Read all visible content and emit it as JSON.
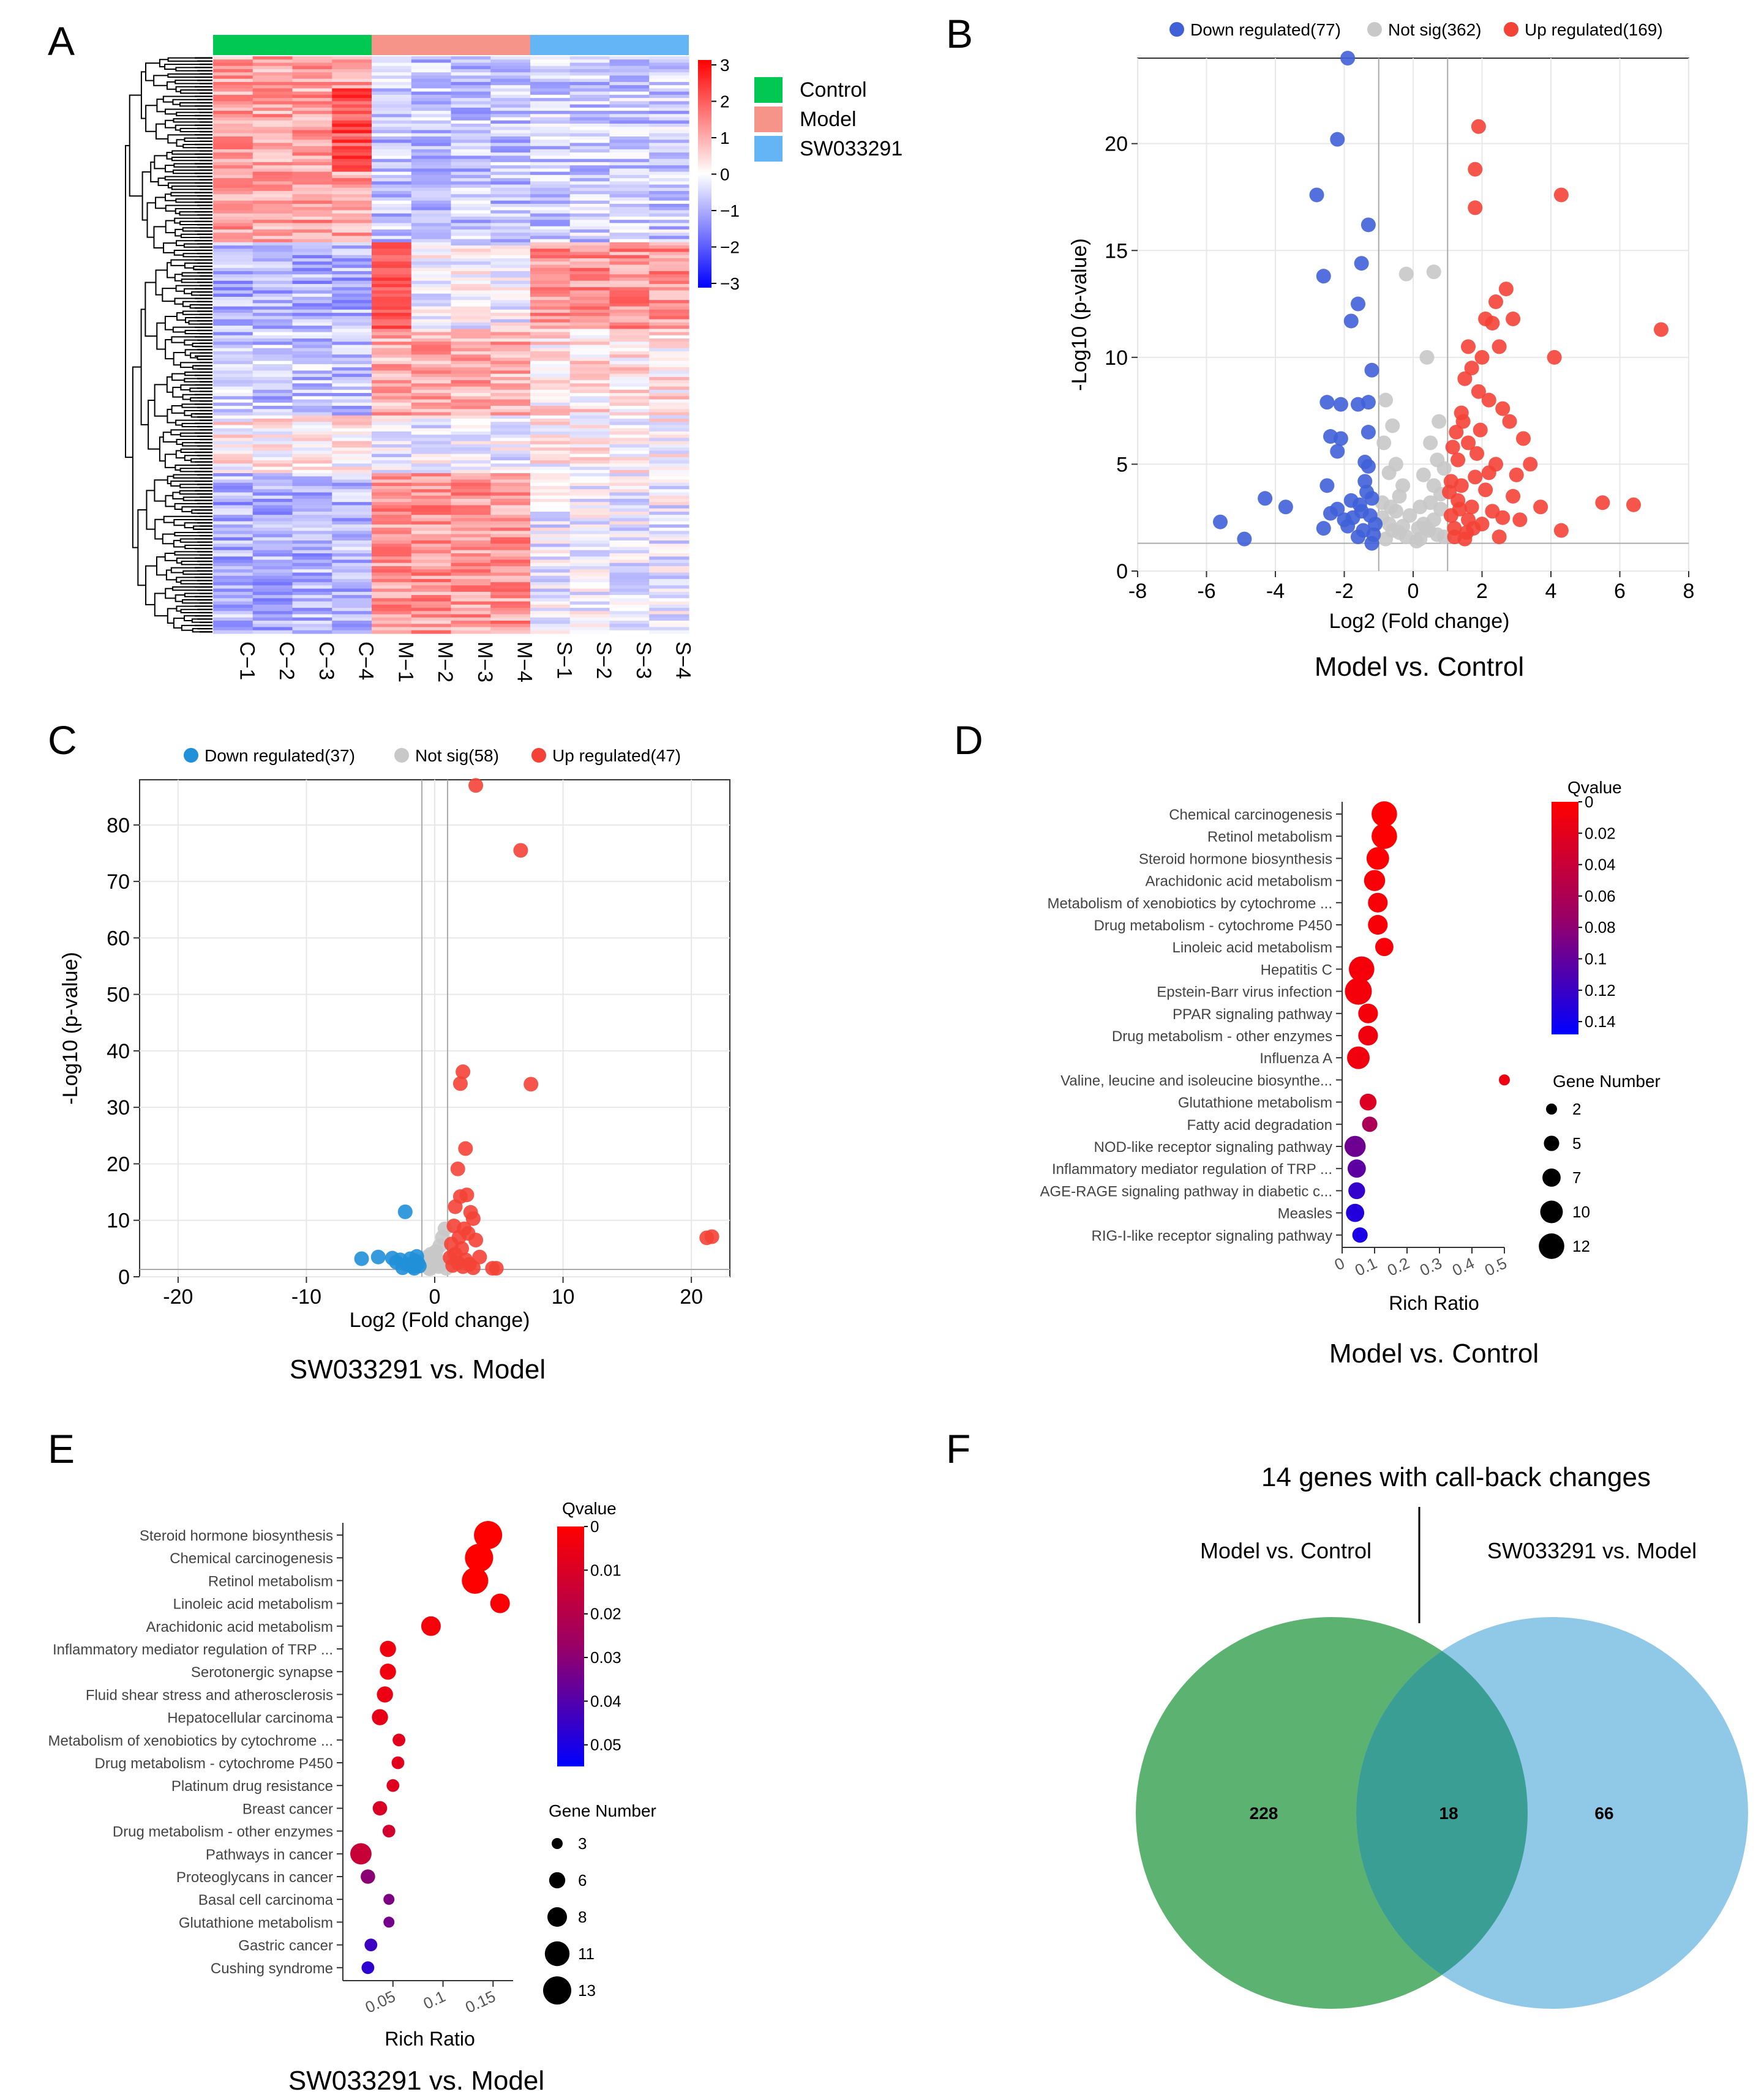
{
  "figure": {
    "panels": [
      "A",
      "B",
      "C",
      "D",
      "E",
      "F"
    ]
  },
  "colors": {
    "control": "#00c853",
    "model": "#f79489",
    "sw": "#64b5f6",
    "down_b": "#4060d8",
    "notsig": "#c8c8c8",
    "up": "#f44336",
    "down_c": "#2090d8",
    "venn_left": "#5cb270",
    "venn_right": "#90c8e8",
    "venn_overlap": "#3a9e94"
  },
  "chart_data": [
    {
      "panel": "A",
      "type": "heatmap",
      "columns": [
        "C−1",
        "C−2",
        "C−3",
        "C−4",
        "M−1",
        "M−2",
        "M−3",
        "M−4",
        "S−1",
        "S−2",
        "S−3",
        "S−4"
      ],
      "groups": [
        {
          "name": "Control",
          "n": 4
        },
        {
          "name": "Model",
          "n": 4
        },
        {
          "name": "SW033291",
          "n": 4
        }
      ],
      "color_scale": {
        "min": -3,
        "max": 3,
        "ticks": [
          "3",
          "2",
          "1",
          "0",
          "−1",
          "−2",
          "−3"
        ]
      },
      "legend": [
        "Control",
        "Model",
        "SW033291"
      ]
    },
    {
      "panel": "B",
      "type": "scatter",
      "subtitle": "Model vs. Control",
      "xlabel": "Log2 (Fold change)",
      "ylabel": "-Log10 (p-value)",
      "xlim": [
        -8,
        8
      ],
      "ylim": [
        0,
        24
      ],
      "xticks": [
        "-8",
        "-6",
        "-4",
        "-2",
        "0",
        "2",
        "4",
        "6",
        "8"
      ],
      "yticks": [
        "0",
        "5",
        "10",
        "15",
        "20"
      ],
      "thresholds": {
        "fc": 1,
        "p": 1.3
      },
      "legend": [
        "Down regulated(77)",
        "Not sig(362)",
        "Up regulated(169)"
      ],
      "down": [
        [
          -1.9,
          24
        ],
        [
          -2.2,
          20.2
        ],
        [
          -2.8,
          17.6
        ],
        [
          -1.3,
          16.2
        ],
        [
          -2.6,
          13.8
        ],
        [
          -1.5,
          14.4
        ],
        [
          -1.6,
          12.5
        ],
        [
          -1.8,
          11.7
        ],
        [
          -1.2,
          9.4
        ],
        [
          -2.5,
          7.9
        ],
        [
          -2.1,
          7.8
        ],
        [
          -1.6,
          7.8
        ],
        [
          -1.3,
          7.9
        ],
        [
          -2.4,
          6.3
        ],
        [
          -2.1,
          6.2
        ],
        [
          -2.2,
          5.6
        ],
        [
          -1.4,
          5.1
        ],
        [
          -1.3,
          4.9
        ],
        [
          -2.5,
          4.0
        ],
        [
          -4.3,
          3.4
        ],
        [
          -3.7,
          3.0
        ],
        [
          -2.4,
          2.7
        ],
        [
          -2.0,
          2.4
        ],
        [
          -5.6,
          2.3
        ],
        [
          -4.9,
          1.5
        ],
        [
          -2.6,
          2.0
        ],
        [
          -1.9,
          2.1
        ],
        [
          -1.5,
          2.8
        ],
        [
          -1.2,
          3.4
        ],
        [
          -1.8,
          3.3
        ],
        [
          -1.4,
          4.2
        ],
        [
          -1.1,
          2.2
        ],
        [
          -1.6,
          1.6
        ],
        [
          -1.2,
          1.3
        ],
        [
          -1.35,
          3.7
        ],
        [
          -1.55,
          3.1
        ],
        [
          -1.25,
          2.6
        ],
        [
          -1.75,
          2.5
        ],
        [
          -1.45,
          1.9
        ],
        [
          -1.15,
          1.7
        ],
        [
          -2.2,
          2.9
        ],
        [
          -1.3,
          6.5
        ]
      ],
      "notsig": [
        [
          -0.2,
          13.9
        ],
        [
          0.6,
          14.0
        ],
        [
          0.4,
          10.0
        ],
        [
          -0.8,
          8.0
        ],
        [
          -0.6,
          6.8
        ],
        [
          0.5,
          6.0
        ],
        [
          0.7,
          5.2
        ],
        [
          -0.5,
          5.0
        ],
        [
          0.3,
          4.5
        ],
        [
          -0.3,
          4.0
        ],
        [
          0.8,
          3.6
        ],
        [
          -0.9,
          3.2
        ],
        [
          0.2,
          3.0
        ],
        [
          -0.1,
          2.6
        ],
        [
          0.6,
          2.4
        ],
        [
          -0.7,
          2.2
        ],
        [
          0.4,
          2.0
        ],
        [
          -0.4,
          1.8
        ],
        [
          0.9,
          1.6
        ],
        [
          -0.8,
          1.5
        ],
        [
          0.1,
          1.4
        ],
        [
          -0.6,
          1.9
        ],
        [
          0.7,
          1.7
        ],
        [
          0.5,
          3.2
        ],
        [
          -0.4,
          3.5
        ],
        [
          0.3,
          2.2
        ],
        [
          -0.2,
          1.6
        ],
        [
          0.8,
          2.9
        ],
        [
          -0.9,
          2.5
        ],
        [
          0.6,
          4.0
        ],
        [
          -0.7,
          4.6
        ],
        [
          0.2,
          1.5
        ],
        [
          -0.5,
          2.8
        ],
        [
          0.75,
          7.0
        ],
        [
          -0.85,
          6.0
        ],
        [
          0.9,
          4.8
        ],
        [
          -0.3,
          2.1
        ],
        [
          0.45,
          1.9
        ],
        [
          -0.65,
          3.0
        ],
        [
          0.15,
          2.0
        ]
      ],
      "up": [
        [
          1.9,
          20.8
        ],
        [
          1.8,
          18.8
        ],
        [
          1.8,
          17.0
        ],
        [
          4.3,
          17.6
        ],
        [
          7.2,
          11.3
        ],
        [
          2.7,
          13.2
        ],
        [
          2.4,
          12.6
        ],
        [
          2.1,
          11.8
        ],
        [
          2.3,
          11.6
        ],
        [
          2.9,
          11.8
        ],
        [
          1.6,
          10.5
        ],
        [
          2.0,
          10.0
        ],
        [
          2.5,
          10.5
        ],
        [
          1.7,
          9.5
        ],
        [
          4.1,
          10.0
        ],
        [
          1.5,
          9.0
        ],
        [
          1.9,
          8.4
        ],
        [
          2.2,
          8.0
        ],
        [
          2.6,
          7.6
        ],
        [
          1.4,
          7.4
        ],
        [
          2.8,
          7.0
        ],
        [
          3.2,
          6.2
        ],
        [
          1.6,
          6.0
        ],
        [
          1.3,
          5.2
        ],
        [
          2.4,
          5.0
        ],
        [
          3.0,
          4.5
        ],
        [
          1.8,
          4.4
        ],
        [
          2.1,
          3.8
        ],
        [
          3.7,
          3.0
        ],
        [
          4.3,
          1.9
        ],
        [
          5.5,
          3.2
        ],
        [
          6.4,
          3.1
        ],
        [
          2.6,
          2.5
        ],
        [
          1.2,
          2.0
        ],
        [
          1.5,
          1.5
        ],
        [
          1.3,
          3.3
        ],
        [
          1.1,
          2.6
        ],
        [
          2.0,
          2.2
        ],
        [
          1.4,
          4.0
        ],
        [
          1.7,
          3.0
        ],
        [
          2.3,
          2.8
        ],
        [
          1.2,
          1.6
        ],
        [
          1.6,
          2.4
        ],
        [
          3.4,
          5.0
        ],
        [
          2.9,
          3.5
        ],
        [
          1.25,
          6.5
        ],
        [
          1.45,
          7.0
        ],
        [
          1.85,
          5.5
        ],
        [
          1.1,
          4.2
        ],
        [
          1.55,
          1.8
        ],
        [
          2.5,
          1.6
        ],
        [
          1.35,
          2.9
        ],
        [
          1.75,
          2.0
        ],
        [
          1.15,
          5.8
        ],
        [
          2.2,
          4.6
        ],
        [
          3.1,
          2.4
        ],
        [
          1.95,
          6.6
        ],
        [
          1.05,
          3.7
        ]
      ]
    },
    {
      "panel": "C",
      "type": "scatter",
      "subtitle": "SW033291 vs. Model",
      "xlabel": "Log2 (Fold change)",
      "ylabel": "-Log10 (p-value)",
      "xlim": [
        -23,
        23
      ],
      "ylim": [
        0,
        88
      ],
      "xticks": [
        "-20",
        "-10",
        "0",
        "10",
        "20"
      ],
      "yticks": [
        "0",
        "10",
        "20",
        "30",
        "40",
        "50",
        "60",
        "70",
        "80"
      ],
      "thresholds": {
        "fc": 1,
        "p": 1.3
      },
      "legend": [
        "Down regulated(37)",
        "Not sig(58)",
        "Up regulated(47)"
      ],
      "down": [
        [
          -2.3,
          11.5
        ],
        [
          -5.7,
          3.2
        ],
        [
          -4.4,
          3.5
        ],
        [
          -3.3,
          3.3
        ],
        [
          -2.7,
          3.0
        ],
        [
          -1.9,
          3.2
        ],
        [
          -1.5,
          2.8
        ],
        [
          -2.2,
          2.2
        ],
        [
          -1.7,
          1.8
        ],
        [
          -1.3,
          2.4
        ],
        [
          -1.6,
          1.5
        ],
        [
          -2.5,
          1.6
        ],
        [
          -1.4,
          3.6
        ],
        [
          -1.2,
          1.9
        ],
        [
          -3.0,
          2.6
        ]
      ],
      "notsig": [
        [
          0.8,
          8.5
        ],
        [
          0.6,
          7.0
        ],
        [
          0.4,
          5.5
        ],
        [
          -0.3,
          4.0
        ],
        [
          -0.6,
          3.5
        ],
        [
          0.2,
          3.0
        ],
        [
          -0.8,
          2.8
        ],
        [
          0.7,
          2.5
        ],
        [
          -0.2,
          2.0
        ],
        [
          0.3,
          1.8
        ],
        [
          -0.5,
          1.6
        ],
        [
          0.9,
          1.5
        ],
        [
          0.1,
          4.5
        ],
        [
          -0.9,
          2.2
        ],
        [
          0.5,
          2.1
        ],
        [
          -0.4,
          1.4
        ]
      ],
      "up": [
        [
          3.2,
          87
        ],
        [
          6.7,
          75.5
        ],
        [
          2.2,
          36.3
        ],
        [
          7.5,
          34.1
        ],
        [
          2.0,
          34.2
        ],
        [
          2.4,
          22.7
        ],
        [
          1.8,
          19.1
        ],
        [
          2.0,
          14.2
        ],
        [
          2.5,
          14.5
        ],
        [
          1.6,
          12.4
        ],
        [
          2.8,
          11.4
        ],
        [
          3.0,
          10.3
        ],
        [
          1.5,
          9.0
        ],
        [
          2.3,
          8.5
        ],
        [
          2.6,
          7.7
        ],
        [
          1.9,
          7.0
        ],
        [
          3.2,
          6.5
        ],
        [
          1.3,
          5.8
        ],
        [
          2.1,
          5.0
        ],
        [
          1.6,
          4.0
        ],
        [
          3.5,
          3.5
        ],
        [
          2.4,
          3.0
        ],
        [
          1.8,
          2.5
        ],
        [
          2.7,
          2.2
        ],
        [
          4.5,
          1.5
        ],
        [
          4.8,
          1.5
        ],
        [
          3.0,
          1.6
        ],
        [
          1.4,
          2.0
        ],
        [
          21.2,
          6.9
        ],
        [
          21.6,
          7.1
        ],
        [
          2.2,
          1.8
        ],
        [
          1.2,
          3.4
        ]
      ]
    },
    {
      "panel": "D",
      "type": "scatter",
      "subtitle": "Model vs. Control",
      "xlabel": "Rich Ratio",
      "legend_color": "Qvalue",
      "legend_size": "Gene Number",
      "xlim": [
        0,
        0.5
      ],
      "xticks": [
        "0",
        "0.1",
        "0.2",
        "0.3",
        "0.4",
        "0.5"
      ],
      "color_ticks": [
        "0",
        "0.02",
        "0.04",
        "0.06",
        "0.08",
        "0.1",
        "0.12",
        "0.14"
      ],
      "qmax": 0.15,
      "size_ticks": [
        "2",
        "5",
        "7",
        "10",
        "12"
      ],
      "terms": [
        {
          "name": "Chemical carcinogenesis",
          "ratio": 0.13,
          "q": 0.001,
          "n": 12
        },
        {
          "name": "Retinol metabolism",
          "ratio": 0.13,
          "q": 0.001,
          "n": 12
        },
        {
          "name": "Steroid hormone biosynthesis",
          "ratio": 0.11,
          "q": 0.002,
          "n": 10
        },
        {
          "name": "Arachidonic acid metabolism",
          "ratio": 0.1,
          "q": 0.004,
          "n": 9
        },
        {
          "name": "Metabolism of xenobiotics by cytochrome ...",
          "ratio": 0.11,
          "q": 0.004,
          "n": 8
        },
        {
          "name": "Drug metabolism - cytochrome P450",
          "ratio": 0.11,
          "q": 0.004,
          "n": 8
        },
        {
          "name": "Linoleic acid metabolism",
          "ratio": 0.13,
          "q": 0.005,
          "n": 7
        },
        {
          "name": "Hepatitis C",
          "ratio": 0.06,
          "q": 0.006,
          "n": 12
        },
        {
          "name": "Epstein-Barr virus infection",
          "ratio": 0.05,
          "q": 0.006,
          "n": 13
        },
        {
          "name": "PPAR signaling pathway",
          "ratio": 0.08,
          "q": 0.006,
          "n": 8
        },
        {
          "name": "Drug metabolism - other enzymes",
          "ratio": 0.08,
          "q": 0.008,
          "n": 8
        },
        {
          "name": "Influenza A",
          "ratio": 0.05,
          "q": 0.008,
          "n": 10
        },
        {
          "name": "Valine, leucine and isoleucine biosynthe...",
          "ratio": 0.5,
          "q": 0.01,
          "n": 2
        },
        {
          "name": "Glutathione metabolism",
          "ratio": 0.08,
          "q": 0.02,
          "n": 6
        },
        {
          "name": "Fatty acid degradation",
          "ratio": 0.085,
          "q": 0.05,
          "n": 5
        },
        {
          "name": "NOD-like receptor signaling pathway",
          "ratio": 0.04,
          "q": 0.085,
          "n": 9
        },
        {
          "name": "Inflammatory mediator regulation of TRP ...",
          "ratio": 0.045,
          "q": 0.095,
          "n": 7
        },
        {
          "name": "AGE-RAGE signaling pathway in diabetic c...",
          "ratio": 0.045,
          "q": 0.12,
          "n": 6
        },
        {
          "name": "Measles",
          "ratio": 0.04,
          "q": 0.13,
          "n": 7
        },
        {
          "name": "RIG-I-like receptor signaling pathway",
          "ratio": 0.055,
          "q": 0.135,
          "n": 5
        }
      ]
    },
    {
      "panel": "E",
      "type": "scatter",
      "subtitle": "SW033291 vs. Model",
      "xlabel": "Rich Ratio",
      "legend_color": "Qvalue",
      "legend_size": "Gene Number",
      "xlim": [
        0,
        0.17
      ],
      "xticks": [
        "0.05",
        "0.1",
        "0.15"
      ],
      "color_ticks": [
        "0",
        "0.01",
        "0.02",
        "0.03",
        "0.04",
        "0.05"
      ],
      "qmax": 0.055,
      "size_ticks": [
        "3",
        "6",
        "8",
        "11",
        "13"
      ],
      "terms": [
        {
          "name": "Steroid hormone biosynthesis",
          "ratio": 0.145,
          "q": 0.0,
          "n": 13
        },
        {
          "name": "Chemical carcinogenesis",
          "ratio": 0.136,
          "q": 0.0,
          "n": 13
        },
        {
          "name": "Retinol metabolism",
          "ratio": 0.132,
          "q": 0.0,
          "n": 12
        },
        {
          "name": "Linoleic acid metabolism",
          "ratio": 0.157,
          "q": 0.001,
          "n": 8
        },
        {
          "name": "Arachidonic acid metabolism",
          "ratio": 0.088,
          "q": 0.002,
          "n": 8
        },
        {
          "name": "Inflammatory mediator regulation of TRP ...",
          "ratio": 0.045,
          "q": 0.003,
          "n": 6
        },
        {
          "name": "Serotonergic synapse",
          "ratio": 0.045,
          "q": 0.003,
          "n": 6
        },
        {
          "name": "Fluid shear stress and atherosclerosis",
          "ratio": 0.042,
          "q": 0.004,
          "n": 6
        },
        {
          "name": "Hepatocellular carcinoma",
          "ratio": 0.037,
          "q": 0.005,
          "n": 6
        },
        {
          "name": "Metabolism of xenobiotics by cytochrome ...",
          "ratio": 0.056,
          "q": 0.006,
          "n": 4
        },
        {
          "name": "Drug metabolism - cytochrome P450",
          "ratio": 0.055,
          "q": 0.006,
          "n": 4
        },
        {
          "name": "Platinum drug resistance",
          "ratio": 0.05,
          "q": 0.007,
          "n": 4
        },
        {
          "name": "Breast cancer",
          "ratio": 0.037,
          "q": 0.008,
          "n": 5
        },
        {
          "name": "Drug metabolism - other enzymes",
          "ratio": 0.046,
          "q": 0.01,
          "n": 4
        },
        {
          "name": "Pathways in cancer",
          "ratio": 0.018,
          "q": 0.012,
          "n": 9
        },
        {
          "name": "Proteoglycans in cancer",
          "ratio": 0.025,
          "q": 0.025,
          "n": 5
        },
        {
          "name": "Basal cell carcinoma",
          "ratio": 0.046,
          "q": 0.028,
          "n": 3
        },
        {
          "name": "Glutathione metabolism",
          "ratio": 0.046,
          "q": 0.03,
          "n": 3
        },
        {
          "name": "Gastric cancer",
          "ratio": 0.028,
          "q": 0.042,
          "n": 4
        },
        {
          "name": "Cushing syndrome",
          "ratio": 0.025,
          "q": 0.045,
          "n": 4
        }
      ]
    },
    {
      "panel": "F",
      "type": "venn",
      "title": "14 genes with call-back changes",
      "left_label": "Model vs. Control",
      "right_label": "SW033291 vs. Model",
      "left_only": "228",
      "overlap": "18",
      "right_only": "66"
    }
  ]
}
